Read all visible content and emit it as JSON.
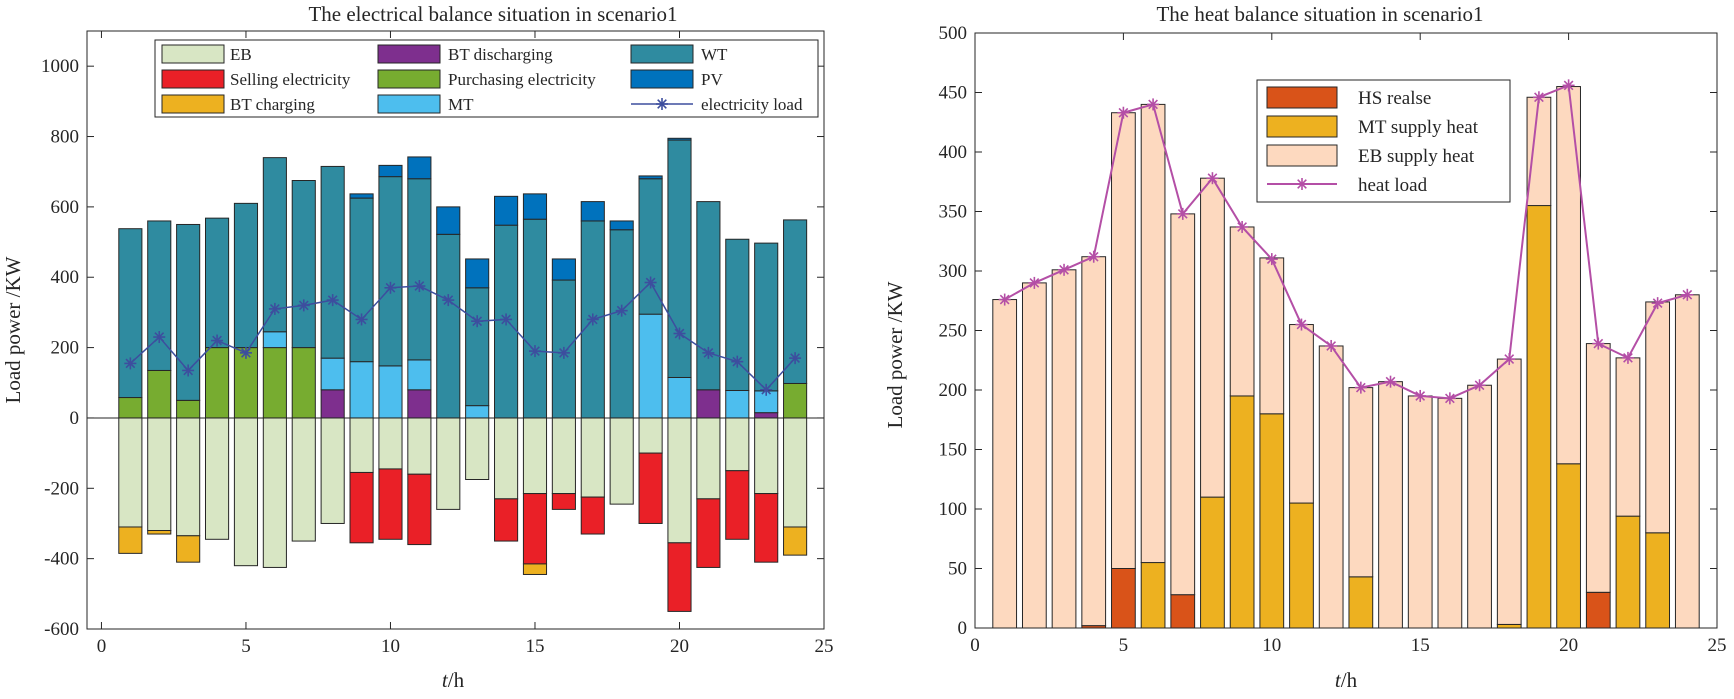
{
  "chart_data": [
    {
      "type": "bar",
      "stacked": true,
      "title": "The electrical balance situation in scenario1",
      "xlabel_italic": "t",
      "xlabel_rest": "/h",
      "ylabel": "Load power /KW",
      "xlim": [
        -0.5,
        25
      ],
      "ylim": [
        -600,
        1100
      ],
      "xticks": [
        "0",
        "5",
        "10",
        "15",
        "20",
        "25"
      ],
      "yticks": [
        "-600",
        "-400",
        "-200",
        "0",
        "200",
        "400",
        "600",
        "800",
        "1000"
      ],
      "x": [
        1,
        2,
        3,
        4,
        5,
        6,
        7,
        8,
        9,
        10,
        11,
        12,
        13,
        14,
        15,
        16,
        17,
        18,
        19,
        20,
        21,
        22,
        23,
        24
      ],
      "series": [
        {
          "name": "EB",
          "color": "#d8e6c4",
          "values": [
            -310,
            -320,
            -335,
            -345,
            -420,
            -425,
            -350,
            -300,
            -155,
            -145,
            -160,
            -260,
            -175,
            -230,
            -215,
            -215,
            -225,
            -245,
            -100,
            -355,
            -230,
            -150,
            -215,
            -310
          ]
        },
        {
          "name": "Selling electricity",
          "color": "#ea2027",
          "values": [
            0,
            0,
            0,
            0,
            0,
            0,
            0,
            0,
            -200,
            -200,
            -200,
            0,
            0,
            -120,
            -200,
            -45,
            -105,
            0,
            -200,
            -195,
            -195,
            -195,
            -195,
            0
          ]
        },
        {
          "name": "BT charging",
          "color": "#edb120",
          "values": [
            -75,
            -10,
            -75,
            0,
            0,
            0,
            0,
            0,
            0,
            0,
            0,
            0,
            0,
            0,
            -30,
            0,
            0,
            0,
            0,
            0,
            0,
            0,
            0,
            -80
          ]
        },
        {
          "name": "BT discharging",
          "color": "#7e2f8e",
          "values": [
            0,
            0,
            0,
            0,
            0,
            0,
            0,
            80,
            0,
            0,
            80,
            0,
            0,
            0,
            0,
            0,
            0,
            0,
            0,
            0,
            80,
            0,
            15,
            0
          ]
        },
        {
          "name": "Purchasing electricity",
          "color": "#77ac30",
          "values": [
            58,
            135,
            50,
            200,
            200,
            200,
            200,
            0,
            0,
            0,
            0,
            0,
            0,
            0,
            0,
            0,
            0,
            0,
            0,
            0,
            0,
            0,
            0,
            98
          ]
        },
        {
          "name": "MT",
          "color": "#4dbeee",
          "values": [
            0,
            0,
            0,
            0,
            0,
            45,
            0,
            90,
            160,
            148,
            85,
            0,
            35,
            0,
            0,
            0,
            0,
            0,
            295,
            115,
            0,
            78,
            62,
            0
          ]
        },
        {
          "name": "WT",
          "color": "#2f8ba0",
          "values": [
            480,
            425,
            500,
            368,
            410,
            495,
            475,
            545,
            465,
            538,
            515,
            522,
            335,
            548,
            565,
            392,
            560,
            535,
            385,
            675,
            535,
            430,
            420,
            465
          ]
        },
        {
          "name": "PV",
          "color": "#0072bd",
          "values": [
            0,
            0,
            0,
            0,
            0,
            0,
            0,
            0,
            12,
            32,
            62,
            78,
            82,
            82,
            72,
            60,
            55,
            25,
            8,
            5,
            0,
            0,
            0,
            0
          ]
        }
      ],
      "line": {
        "name": "electricity load",
        "color": "#3d4e9e",
        "values": [
          155,
          230,
          135,
          220,
          185,
          310,
          320,
          335,
          280,
          370,
          375,
          335,
          275,
          280,
          190,
          185,
          280,
          305,
          385,
          240,
          185,
          160,
          80,
          170
        ]
      },
      "legend": {
        "position": "top",
        "columns": 3
      }
    },
    {
      "type": "bar",
      "stacked": true,
      "title": "The heat balance situation in scenario1",
      "xlabel_italic": "t",
      "xlabel_rest": "/h",
      "ylabel": "Load power /KW",
      "xlim": [
        0,
        25
      ],
      "ylim": [
        0,
        500
      ],
      "xticks": [
        "0",
        "5",
        "10",
        "15",
        "20",
        "25"
      ],
      "yticks": [
        "0",
        "50",
        "100",
        "150",
        "200",
        "250",
        "300",
        "350",
        "400",
        "450",
        "500"
      ],
      "x": [
        1,
        2,
        3,
        4,
        5,
        6,
        7,
        8,
        9,
        10,
        11,
        12,
        13,
        14,
        15,
        16,
        17,
        18,
        19,
        20,
        21,
        22,
        23,
        24
      ],
      "series": [
        {
          "name": "HS realse",
          "color": "#d95319",
          "values": [
            0,
            0,
            0,
            2,
            50,
            0,
            28,
            0,
            0,
            0,
            0,
            0,
            0,
            0,
            0,
            0,
            0,
            0,
            0,
            0,
            30,
            0,
            0,
            0
          ]
        },
        {
          "name": "MT supply heat",
          "color": "#edb120",
          "values": [
            0,
            0,
            0,
            0,
            0,
            55,
            0,
            110,
            195,
            180,
            105,
            0,
            43,
            0,
            0,
            0,
            0,
            3,
            355,
            138,
            0,
            94,
            80,
            0
          ]
        },
        {
          "name": "EB supply heat",
          "color": "#fdd9bf",
          "values": [
            276,
            290,
            301,
            310,
            383,
            385,
            320,
            268,
            142,
            131,
            150,
            237,
            159,
            207,
            195,
            193,
            204,
            223,
            91,
            317,
            209,
            133,
            194,
            280
          ]
        }
      ],
      "line": {
        "name": "heat load",
        "color": "#b44fa6",
        "values": [
          276,
          290,
          301,
          312,
          433,
          440,
          348,
          378,
          337,
          310,
          255,
          237,
          202,
          207,
          195,
          193,
          204,
          226,
          446,
          456,
          239,
          227,
          273,
          280
        ]
      },
      "legend": {
        "position": "top-center",
        "columns": 1
      }
    }
  ]
}
